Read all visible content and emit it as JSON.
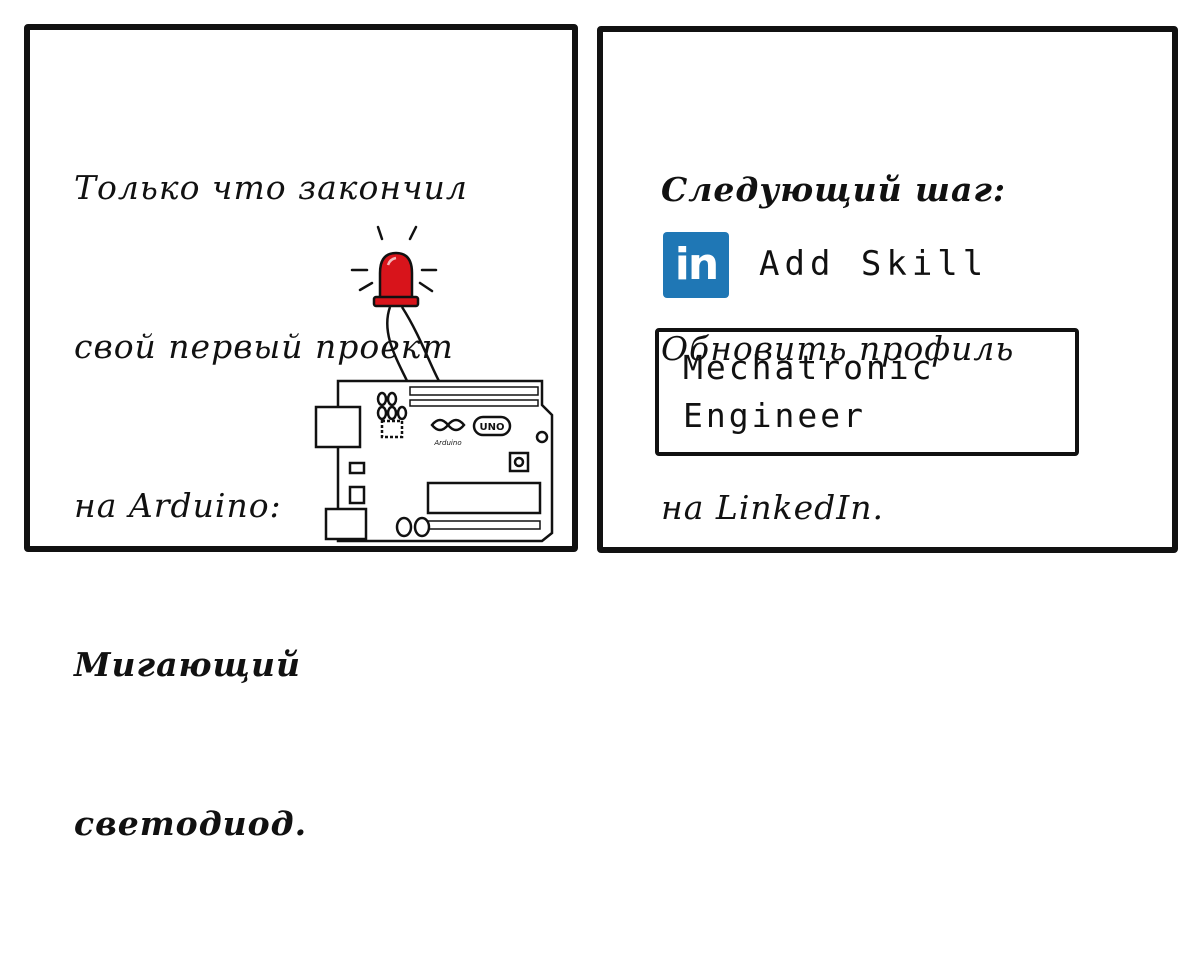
{
  "left_panel": {
    "line1": "Только что закончил",
    "line2": "свой первый проект",
    "line3": "на Arduino:",
    "line4": "Мигающий",
    "line5": "светодиод."
  },
  "right_panel": {
    "line1": "Следующий шаг:",
    "line2": "Обновить профиль",
    "line3": "на LinkedIn.",
    "logo_text": "in",
    "add_skill": "Add Skill",
    "skill_box": {
      "line1": "Mechatronic",
      "line2": "Engineer"
    }
  },
  "board_labels": {
    "uno": "UNO",
    "brand": "Arduino"
  },
  "colors": {
    "led": "#d8141b",
    "linkedin": "#1f77b5",
    "ink": "#111111"
  },
  "icons": [
    "led-icon",
    "arduino-board",
    "linkedin-logo"
  ]
}
